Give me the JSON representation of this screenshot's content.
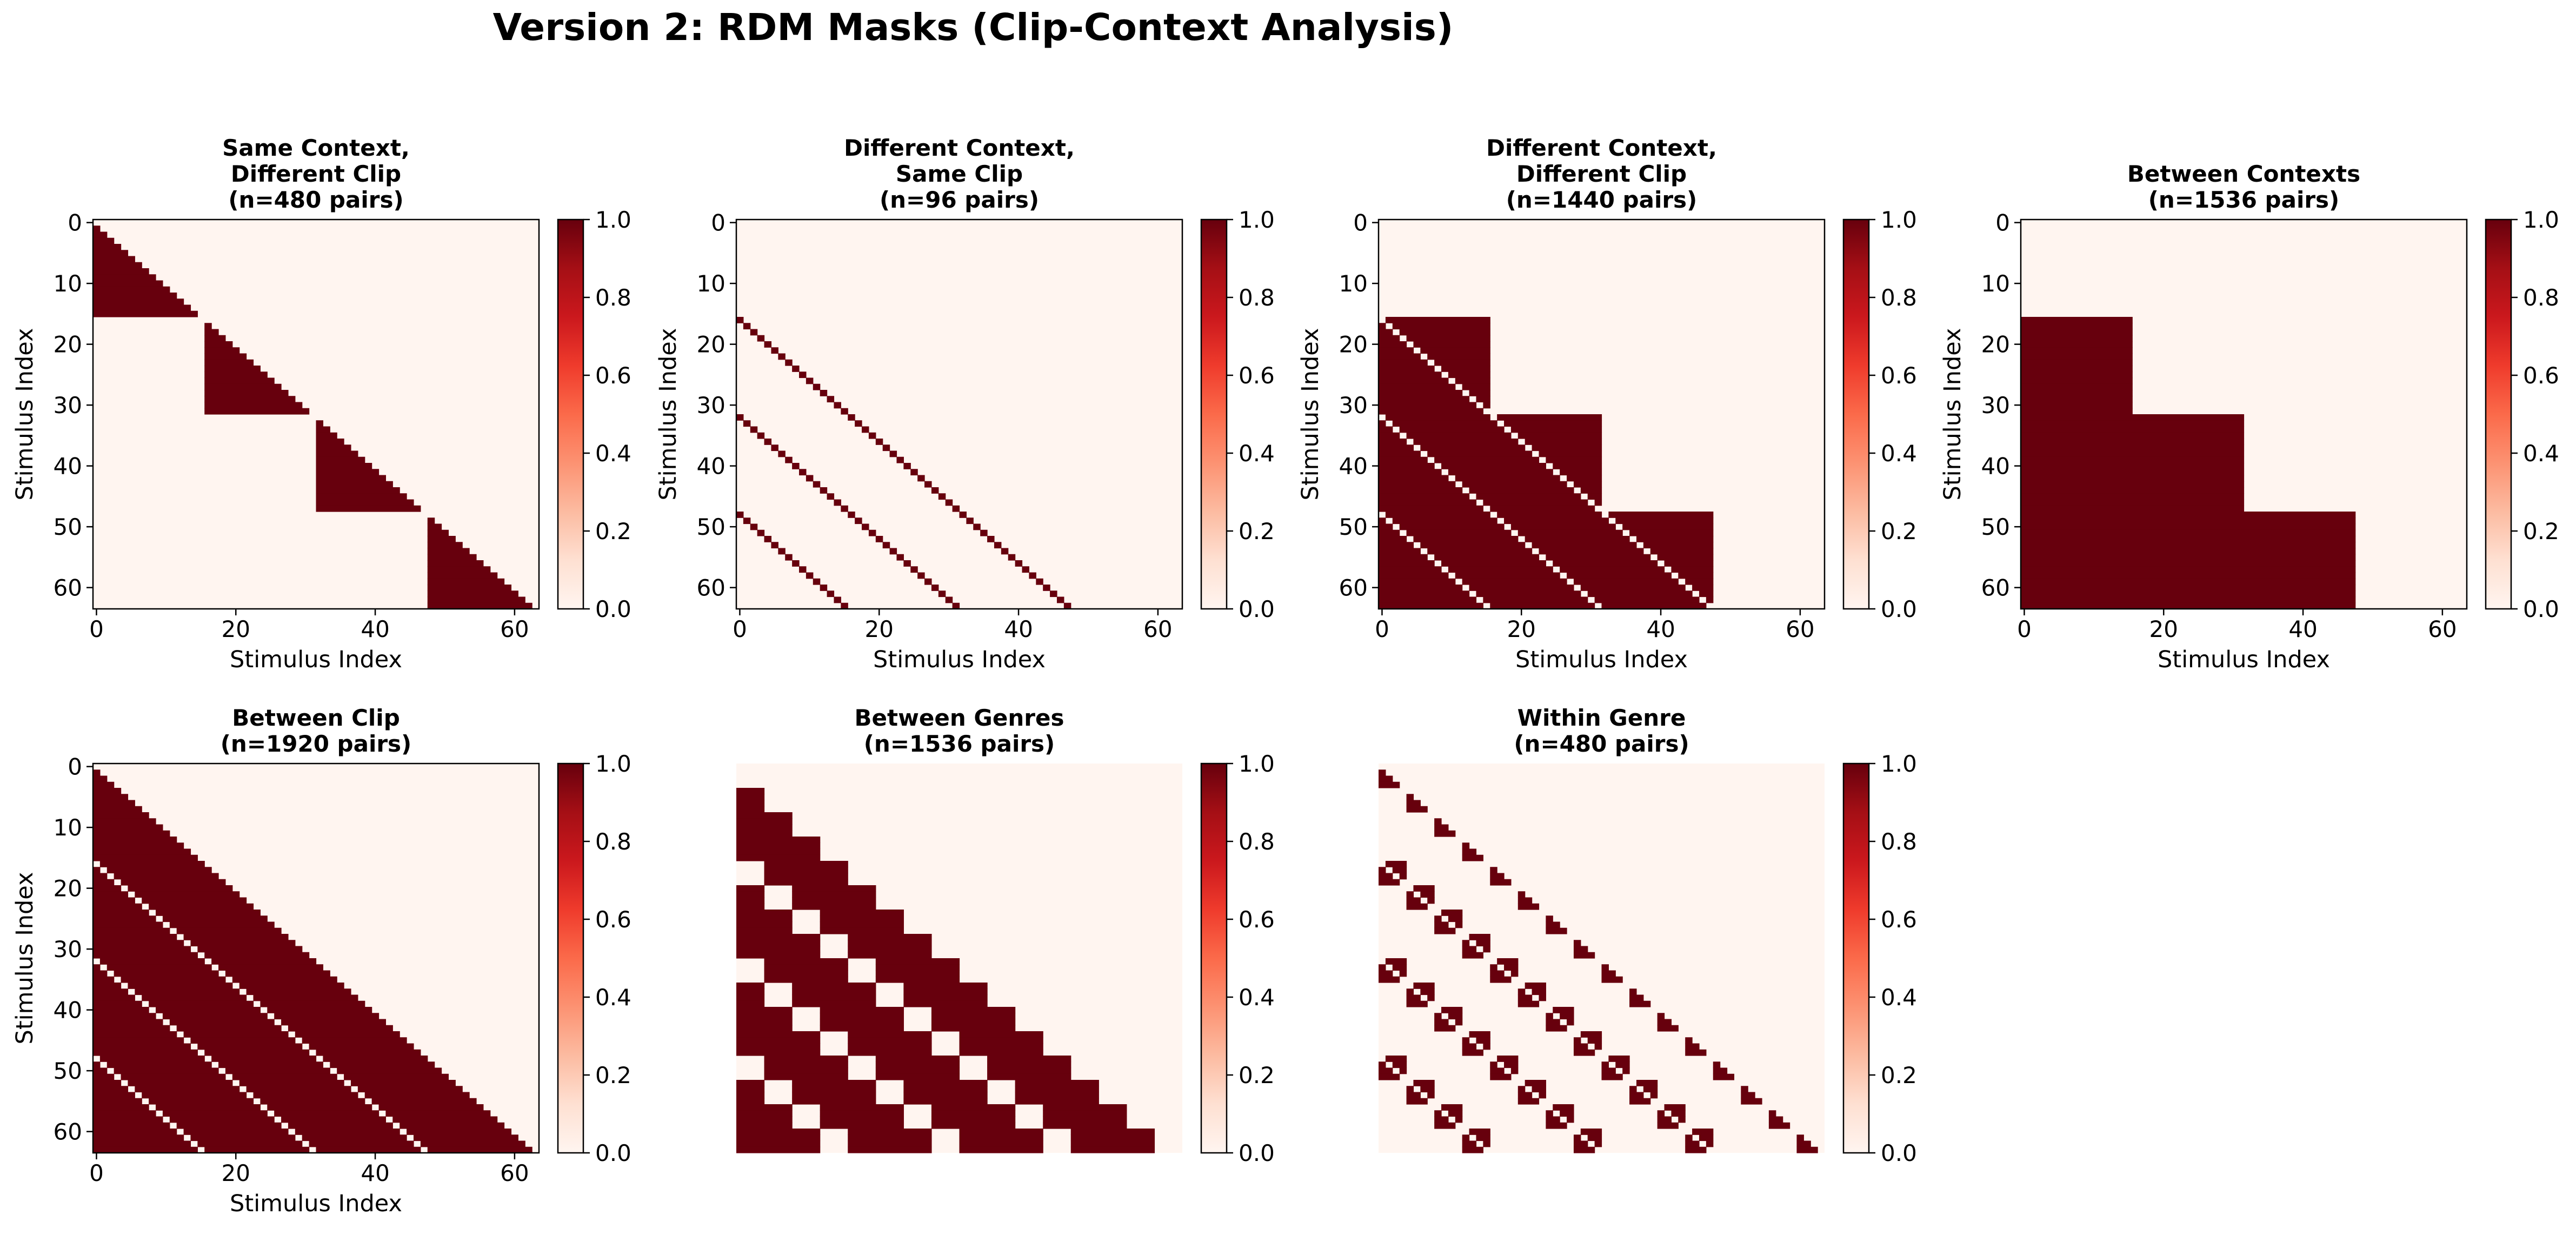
{
  "figure": {
    "title": "Version 2: RDM Masks (Clip-Context Analysis)"
  },
  "colors": {
    "low": "#fff5f0",
    "high": "#67000d",
    "colormap": [
      "#fff5f0",
      "#fee0d2",
      "#fcbba1",
      "#fc9272",
      "#fb6a4a",
      "#ef3b2c",
      "#cb181d",
      "#a50f15",
      "#67000d"
    ]
  },
  "chart_data": [
    {
      "type": "heatmap",
      "title_lines": [
        "Same Context,",
        "Different Clip",
        "(n=480 pairs)"
      ],
      "mask": "same_context_diff_clip",
      "n_pairs": 480,
      "size": 64,
      "xlabel": "Stimulus Index",
      "ylabel": "Stimulus Index",
      "show_axes": true,
      "xticks": [
        0,
        20,
        40,
        60
      ],
      "yticks": [
        0,
        10,
        20,
        30,
        40,
        50,
        60
      ],
      "colorbar": {
        "range": [
          0.0,
          1.0
        ],
        "ticks": [
          "0.0",
          "0.2",
          "0.4",
          "0.6",
          "0.8",
          "1.0"
        ]
      }
    },
    {
      "type": "heatmap",
      "title_lines": [
        "Different Context,",
        "Same Clip",
        "(n=96 pairs)"
      ],
      "mask": "diff_context_same_clip",
      "n_pairs": 96,
      "size": 64,
      "xlabel": "Stimulus Index",
      "ylabel": "Stimulus Index",
      "show_axes": true,
      "xticks": [
        0,
        20,
        40,
        60
      ],
      "yticks": [
        0,
        10,
        20,
        30,
        40,
        50,
        60
      ],
      "colorbar": {
        "range": [
          0.0,
          1.0
        ],
        "ticks": [
          "0.0",
          "0.2",
          "0.4",
          "0.6",
          "0.8",
          "1.0"
        ]
      }
    },
    {
      "type": "heatmap",
      "title_lines": [
        "Different Context,",
        "Different Clip",
        "(n=1440 pairs)"
      ],
      "mask": "diff_context_diff_clip",
      "n_pairs": 1440,
      "size": 64,
      "xlabel": "Stimulus Index",
      "ylabel": "Stimulus Index",
      "show_axes": true,
      "xticks": [
        0,
        20,
        40,
        60
      ],
      "yticks": [
        0,
        10,
        20,
        30,
        40,
        50,
        60
      ],
      "colorbar": {
        "range": [
          0.0,
          1.0
        ],
        "ticks": [
          "0.0",
          "0.2",
          "0.4",
          "0.6",
          "0.8",
          "1.0"
        ]
      }
    },
    {
      "type": "heatmap",
      "title_lines": [
        "Between Contexts",
        "(n=1536 pairs)"
      ],
      "mask": "between_contexts",
      "n_pairs": 1536,
      "size": 64,
      "xlabel": "Stimulus Index",
      "ylabel": "Stimulus Index",
      "show_axes": true,
      "xticks": [
        0,
        20,
        40,
        60
      ],
      "yticks": [
        0,
        10,
        20,
        30,
        40,
        50,
        60
      ],
      "colorbar": {
        "range": [
          0.0,
          1.0
        ],
        "ticks": [
          "0.0",
          "0.2",
          "0.4",
          "0.6",
          "0.8",
          "1.0"
        ]
      }
    },
    {
      "type": "heatmap",
      "title_lines": [
        "Between Clip",
        "(n=1920 pairs)"
      ],
      "mask": "between_clip",
      "n_pairs": 1920,
      "size": 64,
      "xlabel": "Stimulus Index",
      "ylabel": "Stimulus Index",
      "show_axes": true,
      "xticks": [
        0,
        20,
        40,
        60
      ],
      "yticks": [
        0,
        10,
        20,
        30,
        40,
        50,
        60
      ],
      "colorbar": {
        "range": [
          0.0,
          1.0
        ],
        "ticks": [
          "0.0",
          "0.2",
          "0.4",
          "0.6",
          "0.8",
          "1.0"
        ]
      }
    },
    {
      "type": "heatmap",
      "title_lines": [
        "Between Genres",
        "(n=1536 pairs)"
      ],
      "mask": "between_genres",
      "n_pairs": 1536,
      "size": 64,
      "show_axes": false,
      "colorbar": {
        "range": [
          0.0,
          1.0
        ],
        "ticks": [
          "0.0",
          "0.2",
          "0.4",
          "0.6",
          "0.8",
          "1.0"
        ]
      }
    },
    {
      "type": "heatmap",
      "title_lines": [
        "Within Genre",
        "(n=480 pairs)"
      ],
      "mask": "within_genre",
      "n_pairs": 480,
      "size": 64,
      "show_axes": false,
      "colorbar": {
        "range": [
          0.0,
          1.0
        ],
        "ticks": [
          "0.0",
          "0.2",
          "0.4",
          "0.6",
          "0.8",
          "1.0"
        ]
      }
    }
  ]
}
